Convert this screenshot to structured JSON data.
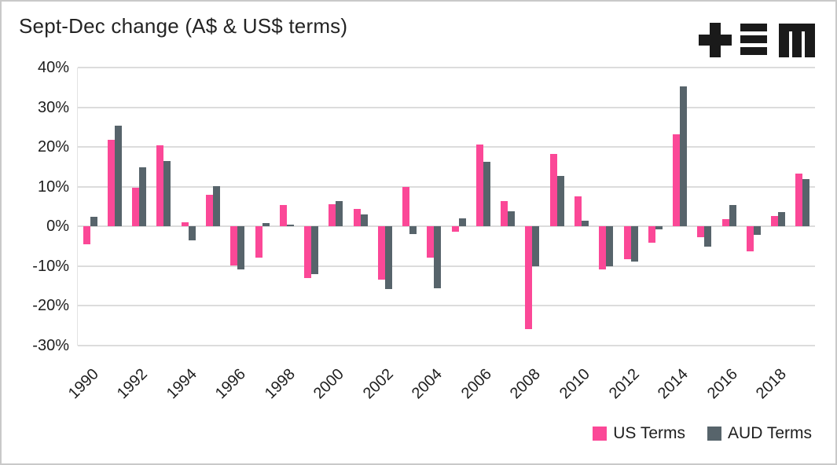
{
  "title": "Sept-Dec change (A$ & US$ terms)",
  "logo": {
    "icon": "plus-triple-bar-m-logo",
    "color": "#1a1a1a"
  },
  "legend": {
    "items": [
      {
        "label": "US Terms",
        "color": "#fb4897"
      },
      {
        "label": "AUD Terms",
        "color": "#57646b"
      }
    ],
    "position": "bottom-right"
  },
  "chart_data": {
    "type": "bar",
    "title": "Sept-Dec change (A$ & US$ terms)",
    "categories": [
      1990,
      1991,
      1992,
      1993,
      1994,
      1995,
      1996,
      1997,
      1998,
      1999,
      2000,
      2001,
      2002,
      2003,
      2004,
      2005,
      2006,
      2007,
      2008,
      2009,
      2010,
      2011,
      2012,
      2013,
      2014,
      2015,
      2016,
      2017,
      2018,
      2019
    ],
    "series": [
      {
        "name": "US Terms",
        "color": "#fb4897",
        "values": [
          -4.4,
          21.8,
          9.8,
          20.5,
          1.0,
          8.0,
          -9.8,
          -7.9,
          5.3,
          -13.0,
          5.5,
          4.5,
          -13.3,
          9.9,
          -7.9,
          -1.3,
          20.7,
          6.3,
          -25.8,
          18.3,
          7.5,
          -10.9,
          -8.3,
          -4.0,
          23.1,
          -2.8,
          1.8,
          -6.2,
          2.6,
          13.3
        ]
      },
      {
        "name": "AUD Terms",
        "color": "#57646b",
        "values": [
          2.4,
          25.4,
          14.9,
          16.4,
          -3.5,
          10.1,
          -10.8,
          0.9,
          0.5,
          -12.1,
          6.3,
          3.0,
          -15.8,
          -2.0,
          -15.5,
          2.1,
          16.3,
          3.8,
          -10.0,
          12.8,
          1.4,
          -10.1,
          -8.9,
          -0.7,
          35.2,
          -5.1,
          5.4,
          -2.2,
          3.6,
          11.9
        ]
      }
    ],
    "xlabel": "",
    "ylabel": "",
    "ylim": [
      -30,
      40
    ],
    "yticks": [
      40,
      30,
      20,
      10,
      0,
      -10,
      -20,
      -30
    ],
    "ytick_suffix": "%",
    "xtick_labels": [
      "1990",
      "1992",
      "1994",
      "1996",
      "1998",
      "2000",
      "2002",
      "2004",
      "2006",
      "2008",
      "2010",
      "2012",
      "2014",
      "2016",
      "2018"
    ],
    "xtick_every": 2,
    "grid": true,
    "grid_color": "#dcdcdc",
    "legend_position": "bottom-right"
  }
}
